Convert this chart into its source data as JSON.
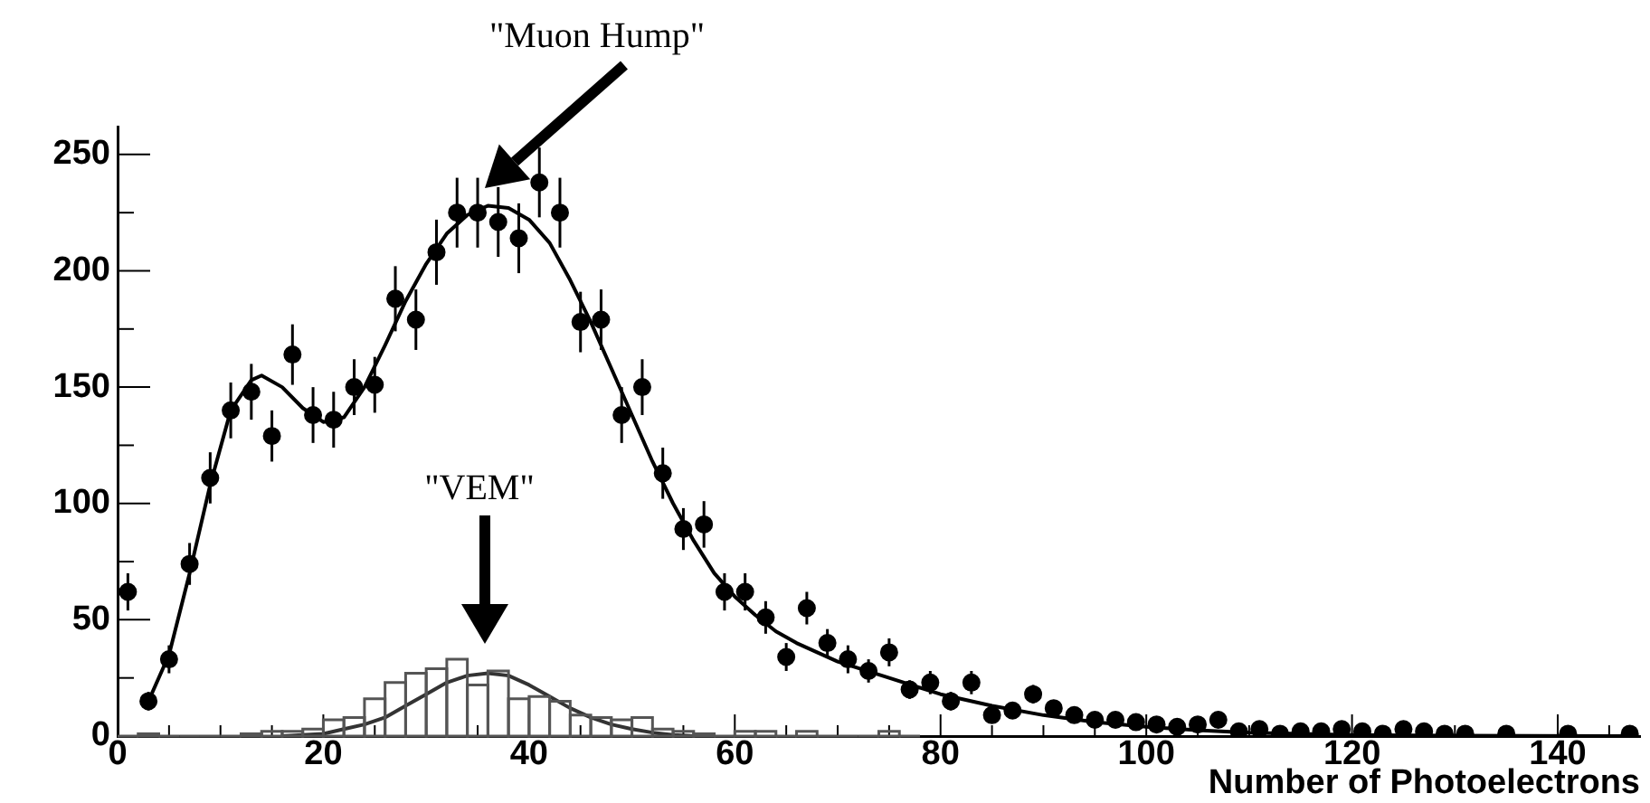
{
  "chart_data": {
    "type": "scatter",
    "xlabel": "Number of Photoelectrons",
    "xlim": [
      0,
      148
    ],
    "ylim": [
      0,
      262
    ],
    "xticks": [
      0,
      {
        "value": 5,
        "label": null
      },
      {
        "value": 10,
        "label": null
      },
      {
        "value": 15,
        "label": null
      },
      20,
      {
        "value": 25,
        "label": null
      },
      {
        "value": 30,
        "label": null
      },
      {
        "value": 35,
        "label": null
      },
      40,
      {
        "value": 45,
        "label": null
      },
      {
        "value": 50,
        "label": null
      },
      {
        "value": 55,
        "label": null
      },
      60,
      {
        "value": 65,
        "label": null
      },
      {
        "value": 70,
        "label": null
      },
      {
        "value": 75,
        "label": null
      },
      80,
      {
        "value": 85,
        "label": null
      },
      {
        "value": 90,
        "label": null
      },
      {
        "value": 95,
        "label": null
      },
      100,
      {
        "value": 105,
        "label": null
      },
      {
        "value": 110,
        "label": null
      },
      {
        "value": 115,
        "label": null
      },
      120,
      {
        "value": 125,
        "label": null
      },
      {
        "value": 130,
        "label": null
      },
      {
        "value": 135,
        "label": null
      },
      140,
      {
        "value": 145,
        "label": null
      }
    ],
    "yticks": [
      0,
      {
        "value": 25,
        "label": null
      },
      50,
      {
        "value": 75,
        "label": null
      },
      100,
      {
        "value": 125,
        "label": null
      },
      150,
      {
        "value": 175,
        "label": null
      },
      200,
      {
        "value": 225,
        "label": null
      },
      250
    ],
    "annotations": [
      "\"Muon Hump\"",
      "\"VEM\""
    ],
    "series": [
      {
        "marker": "circle",
        "color": "#000000",
        "x": [
          1,
          3,
          5,
          7,
          9,
          11,
          13,
          15,
          17,
          19,
          21,
          23,
          25,
          27,
          29,
          31,
          33,
          35,
          37,
          39,
          41,
          43,
          45,
          47,
          49,
          51,
          53,
          55,
          57,
          59,
          61,
          63,
          65,
          67,
          69,
          71,
          73,
          75,
          77,
          79,
          81,
          83,
          85,
          87,
          89,
          91,
          93,
          95,
          97,
          99,
          101,
          103,
          105,
          107,
          109,
          111,
          113,
          115,
          117,
          119,
          121,
          123,
          125,
          127,
          129,
          131,
          133,
          135,
          137,
          139,
          141,
          143,
          145,
          147
        ],
        "values": [
          62,
          15,
          33,
          74,
          111,
          140,
          148,
          129,
          164,
          138,
          136,
          150,
          151,
          188,
          179,
          208,
          225,
          225,
          221,
          214,
          238,
          225,
          178,
          179,
          138,
          150,
          113,
          89,
          91,
          62,
          62,
          51,
          34,
          55,
          40,
          33,
          28,
          36,
          20,
          23,
          15,
          23,
          9,
          11,
          18,
          12,
          9,
          7,
          7,
          6,
          5,
          4,
          5,
          7,
          2,
          3,
          1,
          2,
          2,
          3,
          2,
          1,
          3,
          2,
          1,
          1,
          null,
          1,
          null,
          null,
          1,
          null,
          null,
          1
        ],
        "errors": [
          8,
          4,
          6,
          9,
          11,
          12,
          12,
          11,
          13,
          12,
          12,
          12,
          12,
          14,
          13,
          14,
          15,
          15,
          15,
          15,
          15,
          15,
          13,
          13,
          12,
          12,
          11,
          9,
          10,
          8,
          8,
          7,
          6,
          7,
          6,
          6,
          5,
          6,
          4,
          5,
          4,
          5,
          3,
          3,
          4,
          3,
          3,
          3,
          3,
          2,
          2,
          2,
          2,
          3,
          1,
          2,
          1,
          1,
          1,
          2,
          1,
          1,
          2,
          1,
          1,
          1,
          null,
          1,
          null,
          null,
          1,
          null,
          null,
          1
        ]
      },
      {
        "type": "line",
        "marker": "none",
        "color": "#000000",
        "x": [
          3,
          5,
          7,
          9,
          11,
          13,
          14,
          16,
          18,
          20,
          22,
          24,
          26,
          28,
          30,
          32,
          34,
          36,
          38,
          40,
          42,
          44,
          46,
          48,
          50,
          52,
          54,
          56,
          58,
          60,
          62,
          64,
          66,
          70,
          75,
          80,
          85,
          90,
          95,
          100,
          105,
          110,
          115,
          120,
          130,
          147
        ],
        "values": [
          15,
          35,
          70,
          108,
          140,
          153,
          155,
          150,
          141,
          135,
          137,
          150,
          168,
          187,
          203,
          216,
          224,
          228,
          227,
          222,
          212,
          196,
          178,
          158,
          138,
          118,
          100,
          84,
          70,
          60,
          52,
          45,
          40,
          32,
          25,
          18,
          13,
          9,
          6,
          4,
          2.5,
          1.5,
          1,
          0.5,
          0.2,
          0
        ]
      },
      {
        "type": "histogram",
        "color": "#555555",
        "bins": [
          0,
          2,
          4,
          6,
          8,
          10,
          12,
          14,
          16,
          18,
          20,
          22,
          24,
          26,
          28,
          30,
          32,
          34,
          36,
          38,
          40,
          42,
          44,
          46,
          48,
          50,
          52,
          54,
          56,
          58,
          60,
          62,
          64,
          66,
          68,
          70,
          72,
          74,
          76,
          78
        ],
        "values": [
          0,
          1,
          0,
          0,
          0,
          0,
          1,
          2,
          2,
          3,
          7,
          8,
          16,
          23,
          27,
          29,
          33,
          22,
          28,
          16,
          17,
          15,
          9,
          8,
          7,
          8,
          3,
          2,
          1,
          0,
          2,
          2,
          0,
          2,
          0,
          0,
          0,
          2,
          0
        ]
      },
      {
        "type": "line",
        "marker": "none",
        "color": "#333333",
        "x": [
          16,
          18,
          20,
          22,
          24,
          26,
          28,
          30,
          32,
          34,
          36,
          38,
          40,
          42,
          44,
          46,
          48,
          50,
          52,
          54,
          56
        ],
        "values": [
          0,
          0.5,
          1,
          3,
          5,
          8,
          13,
          18,
          23,
          26,
          27,
          26,
          22,
          17,
          12,
          8,
          5,
          3,
          1.5,
          0.5,
          0
        ]
      }
    ]
  }
}
